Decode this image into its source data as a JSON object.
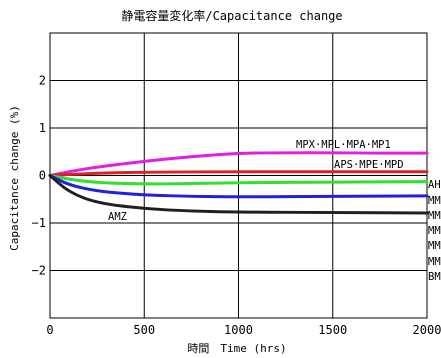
{
  "chart_data": {
    "type": "line",
    "title": "静電容量変化率/Capacitance change",
    "xlabel": "時間　Time (hrs)",
    "ylabel": "Capacitance change (%)",
    "xlim": [
      0,
      2000
    ],
    "ylim": [
      -3,
      3
    ],
    "x_ticks": [
      {
        "value": 0,
        "label": "0"
      },
      {
        "value": 500,
        "label": "500"
      },
      {
        "value": 1000,
        "label": "1000"
      },
      {
        "value": 1500,
        "label": "1500"
      },
      {
        "value": 2000,
        "label": "2000"
      }
    ],
    "y_ticks": [
      {
        "value": 2,
        "label": "2"
      },
      {
        "value": 1,
        "label": "1"
      },
      {
        "value": 0,
        "label": "0"
      },
      {
        "value": -1,
        "label": "−1"
      },
      {
        "value": -2,
        "label": "−2"
      }
    ],
    "grid": true,
    "series": [
      {
        "name": "MPX·MPL·MPA·MP1",
        "color": "#e020e0",
        "points": [
          [
            0,
            0
          ],
          [
            100,
            0.08
          ],
          [
            250,
            0.18
          ],
          [
            500,
            0.3
          ],
          [
            750,
            0.4
          ],
          [
            1000,
            0.47
          ],
          [
            1250,
            0.48
          ],
          [
            1500,
            0.48
          ],
          [
            1750,
            0.47
          ],
          [
            2000,
            0.47
          ]
        ]
      },
      {
        "name": "APS·MPE·MPD",
        "color": "#e02020",
        "points": [
          [
            0,
            0
          ],
          [
            250,
            0.05
          ],
          [
            500,
            0.07
          ],
          [
            1000,
            0.08
          ],
          [
            1500,
            0.08
          ],
          [
            2000,
            0.08
          ]
        ]
      },
      {
        "name": "",
        "color": "#30e030",
        "points": [
          [
            0,
            0
          ],
          [
            100,
            -0.08
          ],
          [
            250,
            -0.15
          ],
          [
            500,
            -0.18
          ],
          [
            750,
            -0.17
          ],
          [
            1000,
            -0.15
          ],
          [
            1500,
            -0.14
          ],
          [
            2000,
            -0.13
          ]
        ]
      },
      {
        "name": "",
        "color": "#2020e0",
        "points": [
          [
            0,
            0
          ],
          [
            100,
            -0.2
          ],
          [
            250,
            -0.33
          ],
          [
            400,
            -0.38
          ],
          [
            500,
            -0.41
          ],
          [
            750,
            -0.44
          ],
          [
            1000,
            -0.45
          ],
          [
            1500,
            -0.44
          ],
          [
            2000,
            -0.43
          ]
        ]
      },
      {
        "name": "AMZ",
        "color": "#202020",
        "points": [
          [
            0,
            0
          ],
          [
            100,
            -0.35
          ],
          [
            250,
            -0.58
          ],
          [
            500,
            -0.7
          ],
          [
            750,
            -0.75
          ],
          [
            1000,
            -0.77
          ],
          [
            1500,
            -0.78
          ],
          [
            2000,
            -0.79
          ]
        ]
      }
    ],
    "clipped_right_labels": [
      "AH",
      "MM",
      "MM",
      "MM",
      "MM",
      "MM",
      "BM"
    ]
  }
}
